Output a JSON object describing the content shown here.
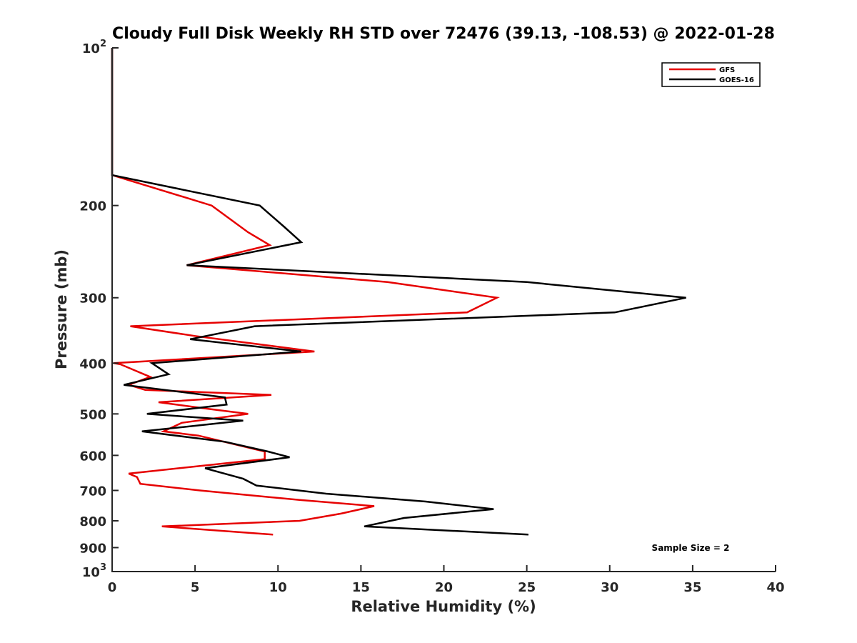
{
  "chart_data": {
    "type": "line",
    "title": "Cloudy Full Disk Weekly RH STD over 72476 (39.13, -108.53) @ 2022-01-28",
    "xlabel": "Relative Humidity (%)",
    "ylabel": "Pressure (mb)",
    "xlim": [
      0,
      40
    ],
    "ylim": [
      100,
      1000
    ],
    "y_scale": "log",
    "y_reversed": true,
    "x_ticks": [
      0,
      5,
      10,
      15,
      20,
      25,
      30,
      35,
      40
    ],
    "x_tick_labels": [
      "0",
      "5",
      "10",
      "15",
      "20",
      "25",
      "30",
      "35",
      "40"
    ],
    "y_ticks": [
      100,
      200,
      300,
      400,
      500,
      600,
      700,
      800,
      900,
      1000
    ],
    "y_tick_labels": [
      {
        "base": "10",
        "exp": "2"
      },
      {
        "base": "200",
        "exp": ""
      },
      {
        "base": "300",
        "exp": ""
      },
      {
        "base": "400",
        "exp": ""
      },
      {
        "base": "500",
        "exp": ""
      },
      {
        "base": "600",
        "exp": ""
      },
      {
        "base": "700",
        "exp": ""
      },
      {
        "base": "800",
        "exp": ""
      },
      {
        "base": "900",
        "exp": ""
      },
      {
        "base": "10",
        "exp": "3"
      }
    ],
    "grid": false,
    "legend_position": "top-right",
    "series": [
      {
        "name": "GFS",
        "color": "#e60000",
        "points": [
          [
            0,
            100
          ],
          [
            0,
            150
          ],
          [
            0,
            175
          ],
          [
            6.0,
            200
          ],
          [
            8.2,
            225
          ],
          [
            9.5,
            238
          ],
          [
            4.5,
            260
          ],
          [
            16.6,
            280
          ],
          [
            23.2,
            300
          ],
          [
            21.4,
            320
          ],
          [
            1.1,
            340
          ],
          [
            5.0,
            355
          ],
          [
            12.2,
            380
          ],
          [
            0.1,
            400
          ],
          [
            0.5,
            402
          ],
          [
            2.3,
            425
          ],
          [
            1.0,
            440
          ],
          [
            2.0,
            450
          ],
          [
            9.6,
            460
          ],
          [
            2.8,
            475
          ],
          [
            6.0,
            490
          ],
          [
            8.2,
            500
          ],
          [
            4.2,
            520
          ],
          [
            3.1,
            540
          ],
          [
            5.2,
            550
          ],
          [
            9.2,
            590
          ],
          [
            9.2,
            610
          ],
          [
            1.0,
            650
          ],
          [
            1.5,
            660
          ],
          [
            1.7,
            680
          ],
          [
            5.3,
            700
          ],
          [
            11.3,
            730
          ],
          [
            15.8,
            750
          ],
          [
            13.8,
            775
          ],
          [
            11.3,
            800
          ],
          [
            3.0,
            820
          ],
          [
            9.7,
            850
          ]
        ]
      },
      {
        "name": "GOES-16",
        "color": "#000000",
        "points": [
          [
            0,
            100
          ],
          [
            0,
            150
          ],
          [
            0,
            175
          ],
          [
            8.9,
            200
          ],
          [
            10.4,
            220
          ],
          [
            11.4,
            235
          ],
          [
            4.5,
            260
          ],
          [
            25.0,
            280
          ],
          [
            34.6,
            300
          ],
          [
            30.3,
            320
          ],
          [
            8.6,
            340
          ],
          [
            4.7,
            360
          ],
          [
            11.4,
            380
          ],
          [
            2.4,
            400
          ],
          [
            3.4,
            420
          ],
          [
            0.7,
            440
          ],
          [
            6.8,
            465
          ],
          [
            6.9,
            480
          ],
          [
            2.1,
            500
          ],
          [
            7.9,
            515
          ],
          [
            1.8,
            540
          ],
          [
            6.8,
            565
          ],
          [
            9.4,
            590
          ],
          [
            10.7,
            605
          ],
          [
            5.6,
            635
          ],
          [
            7.9,
            665
          ],
          [
            8.7,
            685
          ],
          [
            12.9,
            710
          ],
          [
            18.9,
            735
          ],
          [
            23.0,
            760
          ],
          [
            17.6,
            790
          ],
          [
            15.2,
            820
          ],
          [
            25.1,
            850
          ]
        ]
      }
    ],
    "annotation": "Sample Size = 2"
  }
}
